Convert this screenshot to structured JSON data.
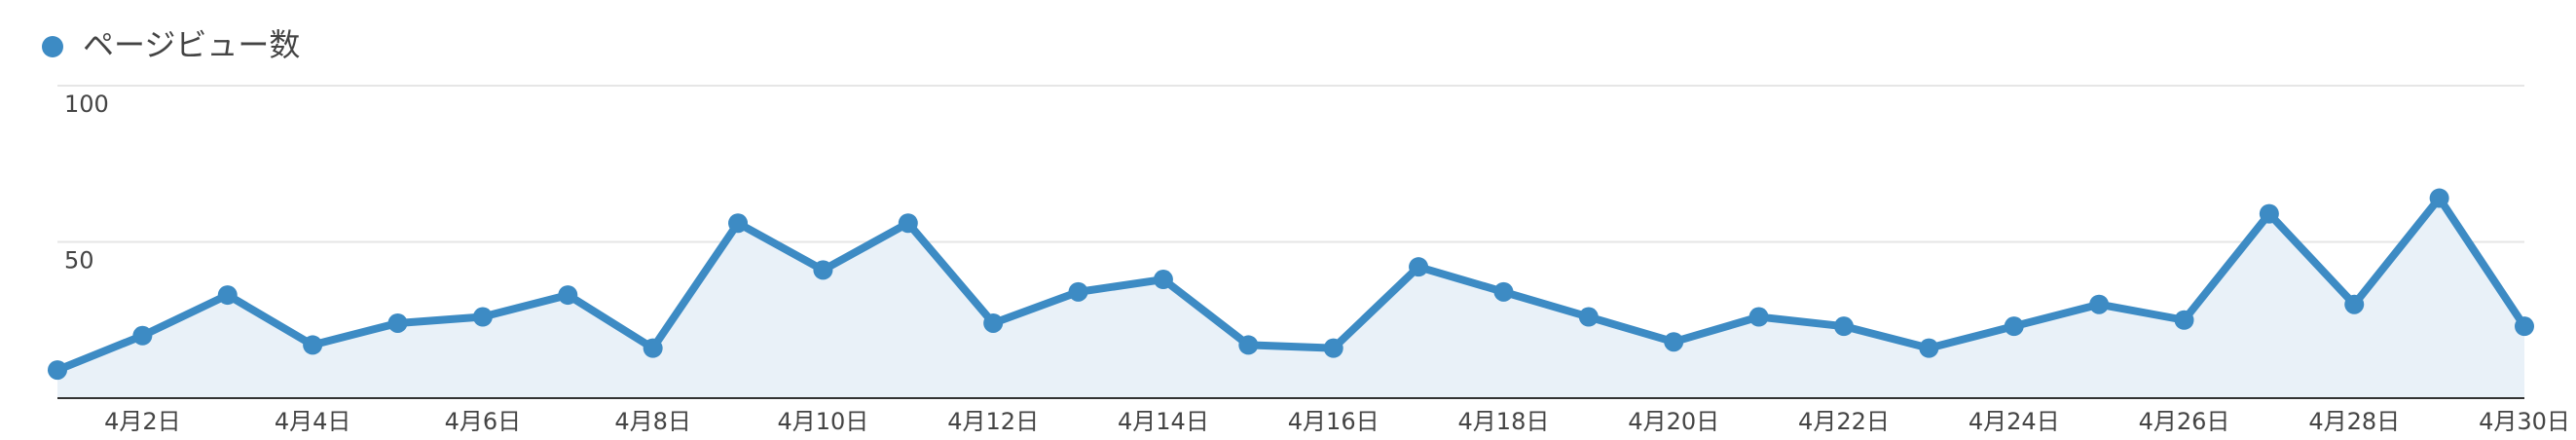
{
  "chart_data": {
    "type": "line",
    "legend": "ページビュー数",
    "color": "#3d8bc4",
    "area_color": "#e9f1f8",
    "categories": [
      null,
      "4月2日",
      null,
      "4月4日",
      null,
      "4月6日",
      null,
      "4月8日",
      null,
      "4月10日",
      null,
      "4月12日",
      null,
      "4月14日",
      null,
      "4月16日",
      null,
      "4月18日",
      null,
      "4月20日",
      null,
      "4月22日",
      null,
      "4月24日",
      null,
      "4月26日",
      null,
      "4月28日",
      null,
      "4月30日"
    ],
    "values": [
      9,
      20,
      33,
      17,
      24,
      26,
      33,
      16,
      56,
      41,
      56,
      24,
      34,
      38,
      17,
      16,
      42,
      34,
      26,
      18,
      26,
      23,
      16,
      23,
      30,
      25,
      59,
      30,
      64,
      23
    ],
    "ylim": [
      0,
      100
    ],
    "yticks": [
      50,
      100
    ],
    "grid": true
  }
}
